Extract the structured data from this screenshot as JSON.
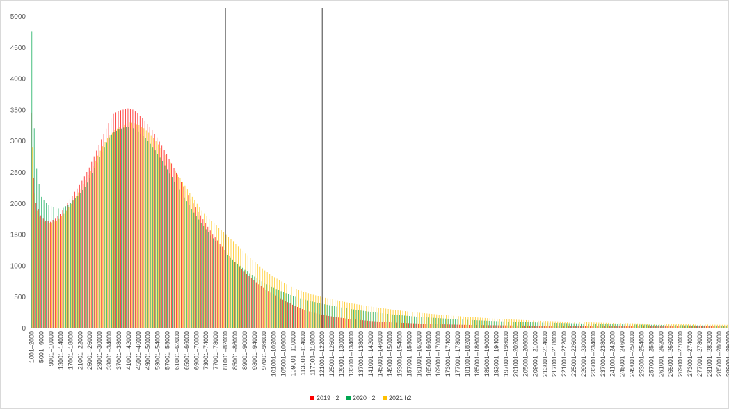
{
  "chart_data": {
    "type": "bar",
    "title": "",
    "xlabel": "",
    "ylabel": "",
    "ylim": [
      0,
      5000
    ],
    "yticks": [
      0,
      500,
      1000,
      1500,
      2000,
      2500,
      3000,
      3500,
      4000,
      4500,
      5000
    ],
    "grid": false,
    "legend_position": "bottom",
    "x_category_start": 1001,
    "x_bin_width": 1000,
    "x_category_count": 288,
    "x_tick_labels": [
      "1001–2000",
      "5001–6000",
      "9001–10000",
      "13001–14000",
      "17001–18000",
      "21001–22000",
      "25001–26000",
      "29001–30000",
      "33001–34000",
      "37001–38000",
      "41001–42000",
      "45001–46000",
      "49001–50000",
      "53001–54000",
      "57001–58000",
      "61001–62000",
      "65001–66000",
      "69001–70000",
      "73001–74000",
      "77001–78000",
      "81001–82000",
      "85001–86000",
      "89001–90000",
      "93001–94000",
      "97001–98000",
      "101001–102000",
      "105001–106000",
      "109001–110000",
      "113001–114000",
      "117001–118000",
      "121001–122000",
      "125001–126000",
      "129001–130000",
      "133001–134000",
      "137001–138000",
      "141001–142000",
      "145001–146000",
      "149001–150000",
      "153001–154000",
      "157001–158000",
      "161001–162000",
      "165001–166000",
      "169001–170000",
      "173001–174000",
      "177001–178000",
      "181001–182000",
      "185001–186000",
      "189001–190000",
      "193001–194000",
      "197001–198000",
      "201001–202000",
      "205001–206000",
      "209001–210000",
      "213001–214000",
      "217001–218000",
      "221001–222000",
      "225001–226000",
      "229001–230000",
      "233001–234000",
      "237001–238000",
      "241001–242000",
      "245001–246000",
      "249001–250000",
      "253001–254000",
      "257001–258000",
      "261001–262000",
      "265001–266000",
      "269001–270000",
      "273001–274000",
      "277001–278000",
      "281001–282000",
      "285001–286000",
      "289001–290000"
    ],
    "x_tick_step": 4,
    "vertical_lines_at_category": [
      "81001–82000",
      "121001–122000"
    ],
    "series": [
      {
        "name": "2019 h2",
        "color": "#ff0000",
        "anchors": [
          [
            0,
            3450
          ],
          [
            1,
            2400
          ],
          [
            2,
            2000
          ],
          [
            3,
            1900
          ],
          [
            4,
            1800
          ],
          [
            6,
            1720
          ],
          [
            8,
            1700
          ],
          [
            10,
            1760
          ],
          [
            12,
            1830
          ],
          [
            14,
            1940
          ],
          [
            16,
            2060
          ],
          [
            18,
            2180
          ],
          [
            20,
            2290
          ],
          [
            22,
            2430
          ],
          [
            24,
            2570
          ],
          [
            26,
            2750
          ],
          [
            28,
            2930
          ],
          [
            30,
            3110
          ],
          [
            32,
            3280
          ],
          [
            34,
            3430
          ],
          [
            36,
            3480
          ],
          [
            38,
            3500
          ],
          [
            40,
            3520
          ],
          [
            42,
            3500
          ],
          [
            44,
            3440
          ],
          [
            46,
            3360
          ],
          [
            48,
            3270
          ],
          [
            50,
            3170
          ],
          [
            52,
            3050
          ],
          [
            54,
            2920
          ],
          [
            56,
            2780
          ],
          [
            58,
            2640
          ],
          [
            60,
            2490
          ],
          [
            62,
            2340
          ],
          [
            64,
            2200
          ],
          [
            66,
            2060
          ],
          [
            68,
            1930
          ],
          [
            70,
            1800
          ],
          [
            72,
            1680
          ],
          [
            74,
            1560
          ],
          [
            76,
            1450
          ],
          [
            78,
            1350
          ],
          [
            80,
            1250
          ],
          [
            82,
            1150
          ],
          [
            84,
            1060
          ],
          [
            88,
            900
          ],
          [
            92,
            760
          ],
          [
            96,
            640
          ],
          [
            100,
            540
          ],
          [
            104,
            450
          ],
          [
            108,
            370
          ],
          [
            112,
            300
          ],
          [
            116,
            250
          ],
          [
            120,
            210
          ],
          [
            126,
            170
          ],
          [
            132,
            140
          ],
          [
            140,
            110
          ],
          [
            150,
            85
          ],
          [
            160,
            68
          ],
          [
            170,
            55
          ],
          [
            180,
            46
          ],
          [
            190,
            40
          ],
          [
            200,
            36
          ],
          [
            210,
            33
          ],
          [
            220,
            30
          ],
          [
            230,
            28
          ],
          [
            240,
            27
          ],
          [
            250,
            26
          ],
          [
            260,
            25
          ],
          [
            270,
            24
          ],
          [
            280,
            24
          ],
          [
            287,
            23
          ]
        ]
      },
      {
        "name": "2020 h2",
        "color": "#00a650",
        "anchors": [
          [
            0,
            4750
          ],
          [
            1,
            3200
          ],
          [
            2,
            2550
          ],
          [
            3,
            2300
          ],
          [
            4,
            2100
          ],
          [
            6,
            2000
          ],
          [
            8,
            1950
          ],
          [
            10,
            1930
          ],
          [
            12,
            1900
          ],
          [
            14,
            1950
          ],
          [
            16,
            2000
          ],
          [
            18,
            2080
          ],
          [
            20,
            2160
          ],
          [
            22,
            2260
          ],
          [
            24,
            2400
          ],
          [
            26,
            2560
          ],
          [
            28,
            2740
          ],
          [
            30,
            2900
          ],
          [
            32,
            3050
          ],
          [
            34,
            3140
          ],
          [
            36,
            3180
          ],
          [
            38,
            3210
          ],
          [
            40,
            3220
          ],
          [
            42,
            3200
          ],
          [
            44,
            3150
          ],
          [
            46,
            3080
          ],
          [
            48,
            3000
          ],
          [
            50,
            2900
          ],
          [
            52,
            2790
          ],
          [
            54,
            2670
          ],
          [
            56,
            2540
          ],
          [
            58,
            2410
          ],
          [
            60,
            2280
          ],
          [
            62,
            2150
          ],
          [
            64,
            2030
          ],
          [
            66,
            1900
          ],
          [
            68,
            1790
          ],
          [
            70,
            1680
          ],
          [
            72,
            1580
          ],
          [
            74,
            1480
          ],
          [
            76,
            1390
          ],
          [
            78,
            1300
          ],
          [
            80,
            1210
          ],
          [
            82,
            1130
          ],
          [
            84,
            1060
          ],
          [
            88,
            930
          ],
          [
            92,
            820
          ],
          [
            96,
            720
          ],
          [
            100,
            640
          ],
          [
            104,
            570
          ],
          [
            108,
            510
          ],
          [
            112,
            460
          ],
          [
            116,
            420
          ],
          [
            120,
            385
          ],
          [
            126,
            340
          ],
          [
            132,
            300
          ],
          [
            140,
            255
          ],
          [
            150,
            210
          ],
          [
            160,
            175
          ],
          [
            170,
            150
          ],
          [
            180,
            128
          ],
          [
            190,
            110
          ],
          [
            200,
            96
          ],
          [
            210,
            85
          ],
          [
            220,
            75
          ],
          [
            230,
            66
          ],
          [
            240,
            58
          ],
          [
            250,
            51
          ],
          [
            260,
            45
          ],
          [
            270,
            40
          ],
          [
            280,
            36
          ],
          [
            287,
            33
          ]
        ]
      },
      {
        "name": "2021 h2",
        "color": "#ffc000",
        "anchors": [
          [
            0,
            2900
          ],
          [
            1,
            2150
          ],
          [
            2,
            1880
          ],
          [
            3,
            1780
          ],
          [
            4,
            1720
          ],
          [
            6,
            1680
          ],
          [
            8,
            1690
          ],
          [
            10,
            1720
          ],
          [
            12,
            1790
          ],
          [
            14,
            1880
          ],
          [
            16,
            1990
          ],
          [
            18,
            2110
          ],
          [
            20,
            2230
          ],
          [
            22,
            2370
          ],
          [
            24,
            2520
          ],
          [
            26,
            2680
          ],
          [
            28,
            2840
          ],
          [
            30,
            2980
          ],
          [
            32,
            3090
          ],
          [
            34,
            3170
          ],
          [
            36,
            3220
          ],
          [
            38,
            3260
          ],
          [
            40,
            3290
          ],
          [
            42,
            3280
          ],
          [
            44,
            3250
          ],
          [
            46,
            3200
          ],
          [
            48,
            3130
          ],
          [
            50,
            3040
          ],
          [
            52,
            2940
          ],
          [
            54,
            2830
          ],
          [
            56,
            2710
          ],
          [
            58,
            2590
          ],
          [
            60,
            2460
          ],
          [
            62,
            2340
          ],
          [
            64,
            2220
          ],
          [
            66,
            2100
          ],
          [
            68,
            1990
          ],
          [
            70,
            1880
          ],
          [
            72,
            1790
          ],
          [
            74,
            1710
          ],
          [
            76,
            1640
          ],
          [
            78,
            1570
          ],
          [
            80,
            1500
          ],
          [
            82,
            1420
          ],
          [
            84,
            1340
          ],
          [
            88,
            1190
          ],
          [
            92,
            1050
          ],
          [
            96,
            920
          ],
          [
            100,
            810
          ],
          [
            104,
            720
          ],
          [
            108,
            640
          ],
          [
            112,
            580
          ],
          [
            116,
            530
          ],
          [
            120,
            490
          ],
          [
            126,
            440
          ],
          [
            132,
            390
          ],
          [
            140,
            340
          ],
          [
            150,
            285
          ],
          [
            160,
            240
          ],
          [
            170,
            205
          ],
          [
            180,
            175
          ],
          [
            190,
            150
          ],
          [
            200,
            130
          ],
          [
            210,
            113
          ],
          [
            220,
            100
          ],
          [
            230,
            88
          ],
          [
            240,
            78
          ],
          [
            250,
            70
          ],
          [
            260,
            62
          ],
          [
            270,
            56
          ],
          [
            280,
            50
          ],
          [
            287,
            47
          ]
        ]
      }
    ]
  }
}
